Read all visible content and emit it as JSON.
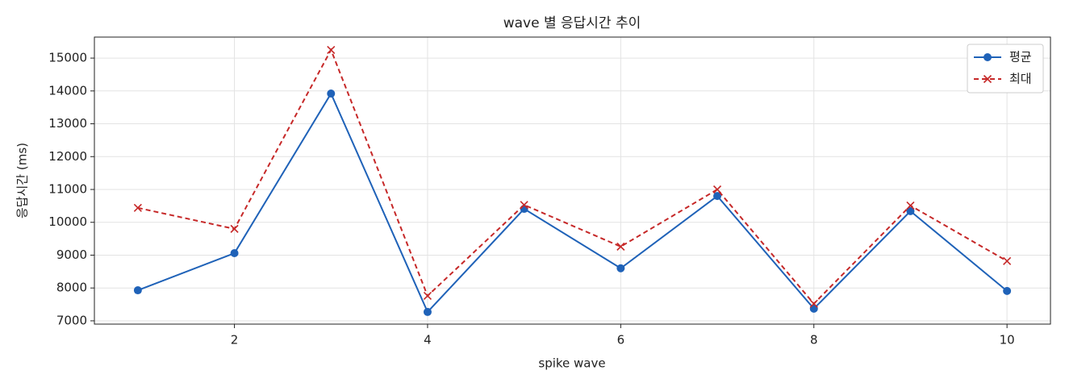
{
  "chart_data": {
    "type": "line",
    "title": "wave 별 응답시간 추이",
    "x_label": "spike wave",
    "y_label": "응답시간 (ms)",
    "x": [
      1,
      2,
      3,
      4,
      5,
      6,
      7,
      8,
      9,
      10
    ],
    "series": [
      {
        "name": "평균",
        "color": "#1f62b8",
        "marker": "o",
        "dash": false,
        "values": [
          7930,
          9060,
          13920,
          7270,
          10410,
          8600,
          10800,
          7370,
          10340,
          7910
        ]
      },
      {
        "name": "최대",
        "color": "#c62828",
        "marker": "x",
        "dash": true,
        "values": [
          10440,
          9800,
          15250,
          7760,
          10530,
          9260,
          11000,
          7520,
          10510,
          8820
        ]
      }
    ],
    "xlim": [
      0.55,
      10.45
    ],
    "xticks": [
      2,
      4,
      6,
      8,
      10
    ],
    "ylim": [
      6900,
      15640
    ],
    "yticks": [
      7000,
      8000,
      9000,
      10000,
      11000,
      12000,
      13000,
      14000,
      15000
    ],
    "grid": true,
    "legend": "upper right"
  }
}
